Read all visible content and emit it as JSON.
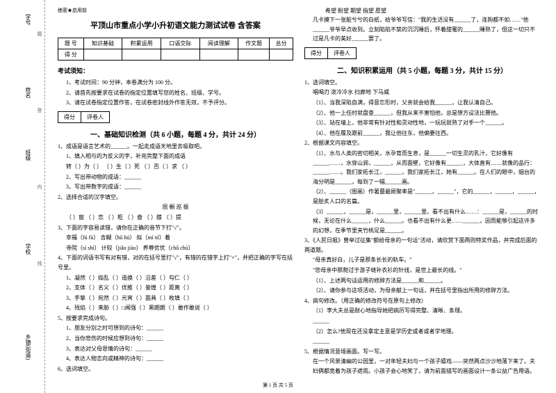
{
  "binding": {
    "labels": [
      "学号",
      "姓名",
      "班级",
      "学校",
      "乡镇(街道)"
    ],
    "cutline": [
      "题",
      "答",
      "本",
      "内",
      "线",
      "封"
    ]
  },
  "confidential": "绝密★启用前",
  "title": "平顶山市重点小学小升初语文能力测试试卷 含答案",
  "scoreTable": {
    "headers": [
      "题  号",
      "知识基础",
      "积累运用",
      "口语交际",
      "阅读理解",
      "作文题",
      "总分"
    ],
    "row2": "得  分"
  },
  "notice": {
    "heading": "考试须知：",
    "items": [
      "1、考试时间：90 分钟，本卷满分为 100 分。",
      "2、请首先按要求在试卷的指定位置填写您的姓名、班级、学号。",
      "3、请在试卷指定位置作答，在试卷密封线外作答无效，不予评分。"
    ]
  },
  "scorebox": {
    "a": "得分",
    "b": "评卷人"
  },
  "part1": {
    "title": "一、基础知识检测（共 6 小题，每题 4 分，共计 24 分）",
    "q1": "1、成语是语言艺术的______。一起走成语天地里去吸取吧。",
    "q1a": "1、填入相与的为反义的字，补充完整下面的成语",
    "q1a_line": "转（  ）为（  ）      （  ）生（  ）死      （  ）否（  ）求      （  ）",
    "q1b": "2、写出带动物的成语：______",
    "q1c": "3、写出带数字的成语：______",
    "q2": "2、选择合适的汉字填空。",
    "q2_chars": "屈        橱        巡        振",
    "q2_line": "（  ）窗   （  ）恋    （  ）柜    （  ）奋    （  ）膝    （  ）提",
    "q3": "3、下面的字容易读错，请你在正确的音节下打\"√\"。",
    "q3_1": "幸福（fú  fù）           含糊（hū  hú）            拟（mí  nǐ）着",
    "q3_2": "寺院（sì  shì）         计较（jiǎo  jiào）        养尊优优（chǔ  chù）",
    "q4": "4、下面的词语书写有对有错，对的在括号里打\"√\"，有错的在错字上打\"×\"，并把正确的字写在括号里。",
    "q4_1": "1、凝然（      ）捣乱（      ）造换（      ）沿差（      ）勾仁（      ）",
    "q4_2": "2、支体（      ）名义（      ）优推（      ）鉴煌（      ）距离（      ）",
    "q4_3": "3、手挚（      ）宛然（      ）元宵（      ）面具（      ）枚填（      ）",
    "q4_4": "4、残焰（      ）来胁（      ）□闻强（      ）黑朗朗（      ）敢作敢说（      ）",
    "q5": "5、按要求完成诗句。",
    "q5_1": "1、朋友分别之时可想到的诗句：______",
    "q5_2": "2、当你悲伤的时候应想到诗句：______",
    "q5_3": "3、表达对父母恩情的诗句：______",
    "q5_4": "4、表达人物志向或精神的诗句：______",
    "q6": "6、选词填空。"
  },
  "col2": {
    "options_line": "希望        盼望        期望        指望        愿望",
    "story": "凡卡摸下一张脏兮兮的白纸，给爷爷写信：\"我的生活没有______了，连狗都不如……\"他______爷爷早点收到。立刻陷陷不禁的沉沉睡后，怀着甜蜜的______睡熟了，但这一切只不过是凡卡的美好______罢了。",
    "part2_title": "二、知识积累运用（共 5 小题，每题 3 分，共计 15 分）",
    "q1": "1、选词填空。",
    "q1_words": "唱喝刃        泼冷冷水        扫廊地        下马威",
    "q1_1": "（1）、当我深陷自满，得意忘形时，父亲就会给我______，让我认清自己。",
    "q1_2": "（2）、他一上任时就盘查______，但我从来不害怕他，总是想方设法比赛他。",
    "q1_3": "（3）、站在墙上，他非常有针对性和灵动性地，一玩玩就熟了对手一个______。",
    "q1_4": "（4）、他在履及跟前______，我让他往东，他偏要往西。",
    "q2": "2、根据课文内容填空。",
    "q2_1": "（1）、水与人类的密切相关，水孕育而生息，是______一切生灵的乳汁，它好像有______……，水穿山涧，______，从而面壁，它好像有______，大体直有……就像的品行：______……。我们家拓长江，______，我们家拓长江，她有______。在人们的眼中，烟台的海分明是______，每到了一幅______画。",
    "q2_2": "（2）、______（图画）作著墓最顾聚率是\"______，______\"，它的______，______，______，是脍炙人口的名篇。",
    "q2_3": "（3）______，______是，______里，______里。看不出有什么……：______是，______的时候，无论在什么______，什么______。也看不出有什么更……______，因而能够引起这许多的幻想，在季节里夹竹桃足是______。",
    "q3": "3、《人民日报》曾举过征集\"额给母亲的一句话\"活动，请欣赏下面两则特奖作品，并完成后面的两道题。",
    "q3_a": "\"母亲真好白，儿子是那条长长的轨车。\"",
    "q3_b": "\"您母亲中那爬过于游子缝补衣衫的针线，是世上最长的线。\"",
    "q3_1": "（1）、上述两句话运用的修辞方法是______和______。",
    "q3_2": "（2）、请你参与这项活动，为母亲献上一句话，并在括号里指出所用的修辞方法。",
    "q4": "4、病句修改。（用正确的修改符号在原句上修改）",
    "q4_1": "（1）李大夫总是耐心地指导她把病历写得完整、清晰、条理。",
    "q4_2": "______",
    "q4_3": "（2）怎么?他现在还没拿定主意是学历史或者或者学地理。",
    "q4_4": "______",
    "q5": "5、根据情况意境画面。写一写。",
    "q5_text": "在一个风景清幽的公园里，一对年轻夫妇与一个孩子嬉戏——突然两点沙沙地落下来了。夫妇俩都竞着为孩子遮雨。小孩子会心地笑了，请为前面描写的画面设计一条公益广告用语。"
  },
  "footer": "第 1 页 共 5 页"
}
